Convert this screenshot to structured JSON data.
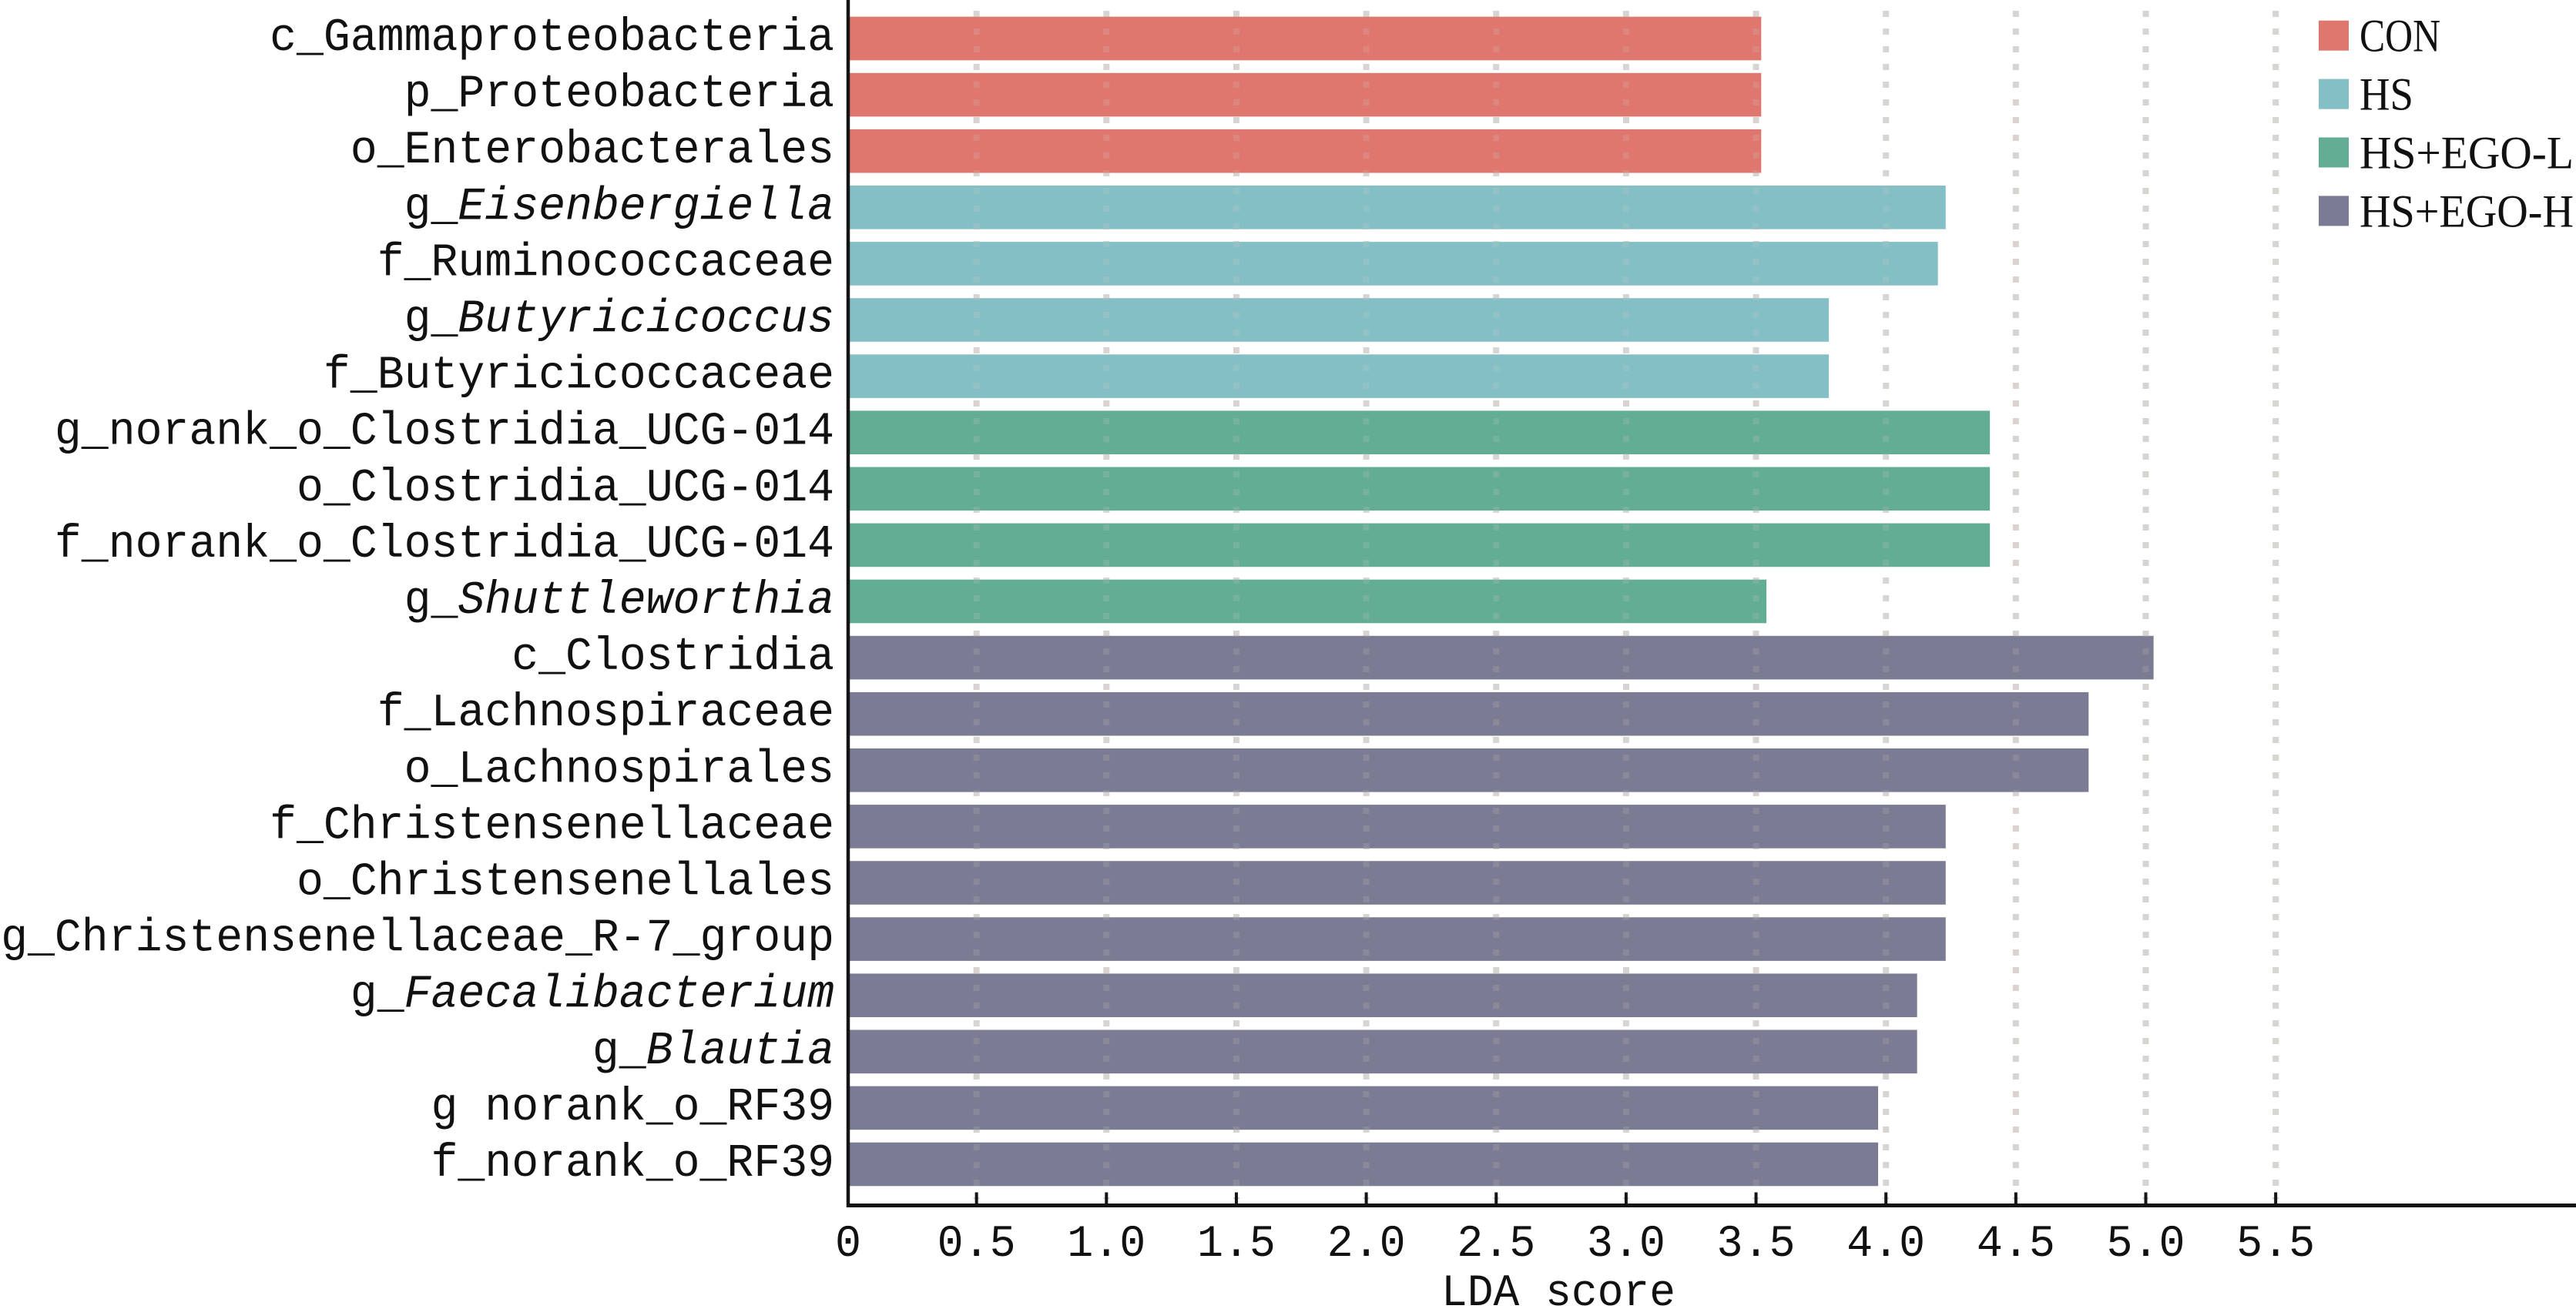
{
  "chart_data": {
    "type": "bar",
    "orientation": "horizontal",
    "title": "",
    "xlabel": "LDA score",
    "ylabel": "",
    "xlim": [
      0,
      6.66
    ],
    "xticks": [
      0,
      0.5,
      1.0,
      1.5,
      2.0,
      2.5,
      3.0,
      3.5,
      4.0,
      4.5,
      5.0,
      5.5
    ],
    "xtick_labels": [
      "0",
      "0.5",
      "1.0",
      "1.5",
      "2.0",
      "2.5",
      "3.0",
      "3.5",
      "4.0",
      "4.5",
      "5.0",
      "5.5"
    ],
    "grid": "vertical dotted at 0.5–5.5",
    "legend_position": "top-right",
    "groups": [
      {
        "name": "CON",
        "color": "#E0776E"
      },
      {
        "name": "HS",
        "color": "#85BFC6"
      },
      {
        "name": "HS+EGO-L",
        "color": "#62AD94"
      },
      {
        "name": "HS+EGO-H",
        "color": "#7B7B93"
      }
    ],
    "bars": [
      {
        "prefix": "c_",
        "name": "Gammaproteobacteria",
        "italic": false,
        "group": "CON",
        "value": 3.52
      },
      {
        "prefix": "p_",
        "name": "Proteobacteria",
        "italic": false,
        "group": "CON",
        "value": 3.52
      },
      {
        "prefix": "o_",
        "name": "Enterobacterales",
        "italic": false,
        "group": "CON",
        "value": 3.52
      },
      {
        "prefix": "g_",
        "name": "Eisenbergiella",
        "italic": true,
        "group": "HS",
        "value": 4.23
      },
      {
        "prefix": "f_",
        "name": "Ruminococcaceae",
        "italic": false,
        "group": "HS",
        "value": 4.2
      },
      {
        "prefix": "g_",
        "name": "Butyricicoccus",
        "italic": true,
        "group": "HS",
        "value": 3.78
      },
      {
        "prefix": "f_",
        "name": "Butyricicoccaceae",
        "italic": false,
        "group": "HS",
        "value": 3.78
      },
      {
        "prefix": "g_",
        "name": "norank_o_Clostridia_UCG-014",
        "italic": false,
        "group": "HS+EGO-L",
        "value": 4.4
      },
      {
        "prefix": "o_",
        "name": "Clostridia_UCG-014",
        "italic": false,
        "group": "HS+EGO-L",
        "value": 4.4
      },
      {
        "prefix": "f_",
        "name": "norank_o_Clostridia_UCG-014",
        "italic": false,
        "group": "HS+EGO-L",
        "value": 4.4
      },
      {
        "prefix": "g_",
        "name": "Shuttleworthia",
        "italic": true,
        "group": "HS+EGO-L",
        "value": 3.54
      },
      {
        "prefix": "c_",
        "name": "Clostridia",
        "italic": false,
        "group": "HS+EGO-H",
        "value": 5.03
      },
      {
        "prefix": "f_",
        "name": "Lachnospiraceae",
        "italic": false,
        "group": "HS+EGO-H",
        "value": 4.78
      },
      {
        "prefix": "o_",
        "name": "Lachnospirales",
        "italic": false,
        "group": "HS+EGO-H",
        "value": 4.78
      },
      {
        "prefix": "f_",
        "name": "Christensenellaceae",
        "italic": false,
        "group": "HS+EGO-H",
        "value": 4.23
      },
      {
        "prefix": "o_",
        "name": "Christensenellales",
        "italic": false,
        "group": "HS+EGO-H",
        "value": 4.23
      },
      {
        "prefix": "g_",
        "name": "Christensenellaceae_R-7_group",
        "italic": false,
        "group": "HS+EGO-H",
        "value": 4.23
      },
      {
        "prefix": "g_",
        "name": "Faecalibacterium",
        "italic": true,
        "group": "HS+EGO-H",
        "value": 4.12
      },
      {
        "prefix": "g_",
        "name": "Blautia",
        "italic": true,
        "group": "HS+EGO-H",
        "value": 4.12
      },
      {
        "prefix": "g ",
        "name": "norank_o_RF39",
        "italic": false,
        "group": "HS+EGO-H",
        "value": 3.97
      },
      {
        "prefix": "f_",
        "name": "norank_o_RF39",
        "italic": false,
        "group": "HS+EGO-H",
        "value": 3.97
      }
    ]
  }
}
